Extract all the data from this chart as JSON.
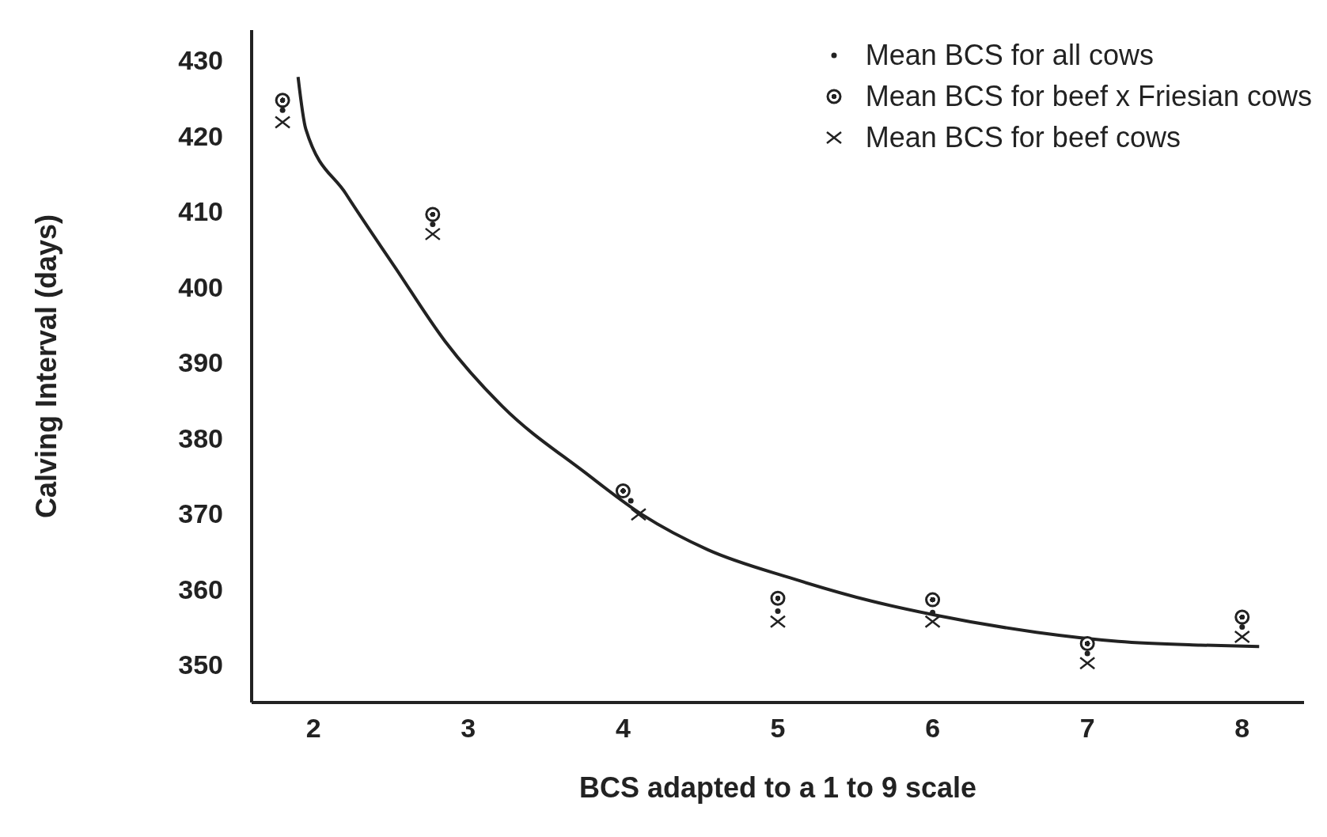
{
  "chart_data": {
    "type": "scatter",
    "xlabel": "BCS adapted to a 1 to 9 scale",
    "ylabel": "Calving Interval (days)",
    "xlim": [
      1.6,
      8.4
    ],
    "xticks": [
      2,
      3,
      4,
      5,
      6,
      7,
      8
    ],
    "ylim": [
      345,
      434
    ],
    "yticks": [
      350,
      360,
      370,
      380,
      390,
      400,
      410,
      420,
      430
    ],
    "grid": false,
    "legend": "top right",
    "series": [
      {
        "name": "Mean BCS for all cows",
        "color": "#222222",
        "marker": "circle",
        "x": [
          1.8,
          2.77,
          4.05,
          5,
          6,
          7,
          8
        ],
        "values": [
          423.4,
          408.3,
          371.7,
          357.1,
          356.9,
          351.5,
          355
        ]
      },
      {
        "name": "Mean BCS for beef x Friesian cows",
        "color": "#222222",
        "marker": "circle",
        "x": [
          1.8,
          2.77,
          4,
          5,
          6,
          7,
          8
        ],
        "values": [
          424.7,
          409.6,
          373,
          358.8,
          358.6,
          352.8,
          356.3
        ]
      },
      {
        "name": "Mean BCS for beef cows",
        "color": "#222222",
        "marker": "cross",
        "x": [
          1.8,
          2.77,
          4.1,
          5,
          6,
          7,
          8
        ],
        "values": [
          421.8,
          407,
          369.9,
          355.7,
          355.7,
          350.2,
          353.7
        ]
      },
      {
        "type": "line",
        "color": "#222222",
        "marker": "none",
        "x": [
          1.9,
          1.95,
          2.21,
          2.53,
          2.85,
          3.22,
          3.75,
          4.12,
          4.55,
          5.08,
          5.61,
          6.01,
          6.67,
          7.2,
          7.73,
          8.11
        ],
        "values": [
          427.8,
          420.9,
          412.3,
          402.5,
          392.8,
          384.2,
          375.5,
          369.9,
          365.2,
          361.5,
          358.4,
          356.6,
          354.3,
          353.1,
          352.6,
          352.4
        ]
      }
    ]
  }
}
